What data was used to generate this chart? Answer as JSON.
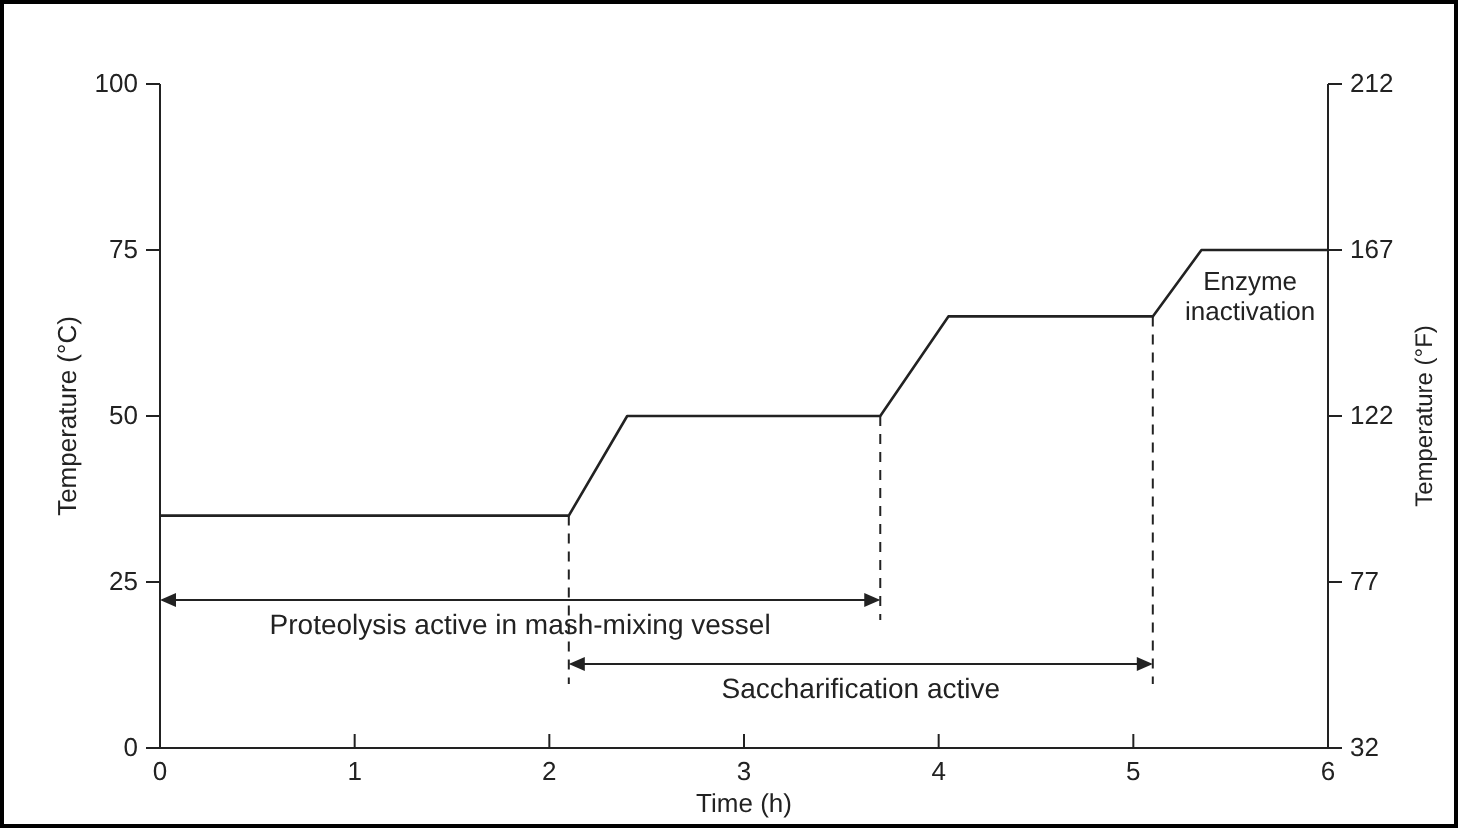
{
  "chart_data": {
    "type": "line",
    "xlabel": "Time (h)",
    "ylabel": "Temperature (°C)",
    "y2label": "Temperature (°F)",
    "x": [
      0,
      2.1,
      2.4,
      3.7,
      4.05,
      5.1,
      5.35,
      6
    ],
    "series": [
      {
        "color": "#222222",
        "values": [
          35,
          35,
          50,
          50,
          65,
          65,
          75,
          75
        ]
      }
    ],
    "xlim": [
      0,
      6
    ],
    "xticks": [
      0,
      1,
      2,
      3,
      4,
      5,
      6
    ],
    "ylim": [
      0,
      100
    ],
    "yticks": [
      0,
      25,
      50,
      75,
      100
    ],
    "y2lim": [
      32,
      212
    ],
    "y2ticks": [
      32,
      77,
      122,
      167,
      212
    ],
    "ref_lines": [
      {
        "axis": "x",
        "value": 2.1,
        "line_style": "dashed"
      },
      {
        "axis": "x",
        "value": 3.7,
        "line_style": "dashed"
      },
      {
        "axis": "x",
        "value": 5.1,
        "line_style": "dashed"
      }
    ],
    "annotations": [
      "Proteolysis active in mash-mixing vessel",
      "Saccharification active",
      {
        "text": "Enzyme inactivation",
        "x": 5.6,
        "y": 75
      }
    ],
    "grid": false,
    "marker": "none",
    "line_style": "solid"
  }
}
